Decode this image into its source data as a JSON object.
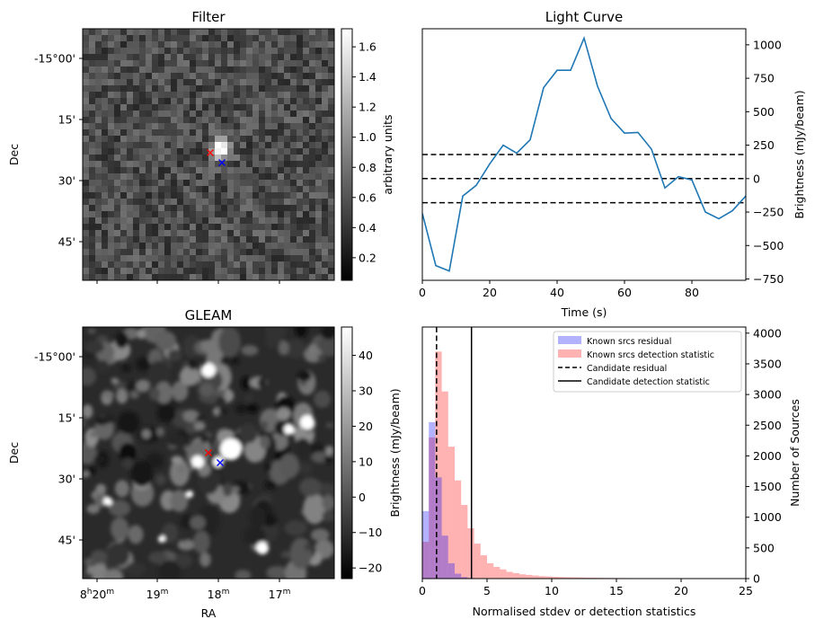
{
  "chart_data": [
    {
      "type": "heatmap",
      "title": "Filter",
      "ylabel": "Dec",
      "y_ticks": [
        "-15°00'",
        "15'",
        "30'",
        "45'"
      ],
      "colorbar": {
        "label": "arbitrary units",
        "range": [
          0.05,
          1.72
        ],
        "ticks": [
          "0.2",
          "0.4",
          "0.6",
          "0.8",
          "1.0",
          "1.2",
          "1.4",
          "1.6"
        ],
        "tick_values": [
          0.2,
          0.4,
          0.6,
          0.8,
          1.0,
          1.2,
          1.4,
          1.6
        ]
      },
      "markers": [
        {
          "symbol": "x",
          "color": "#ff0000",
          "label": "candidate"
        },
        {
          "symbol": "x",
          "color": "#0000ff",
          "label": "gleam source"
        }
      ]
    },
    {
      "type": "line",
      "title": "Light Curve",
      "xlabel": "Time (s)",
      "ylabel": "Brightness (mJy/beam)",
      "xlim": [
        0,
        96
      ],
      "ylim": [
        -760,
        1120
      ],
      "x_ticks": [
        0,
        20,
        40,
        60,
        80
      ],
      "y_ticks": [
        -750,
        -500,
        -250,
        0,
        250,
        500,
        750,
        1000
      ],
      "series": [
        {
          "color": "#1f77b4",
          "x": [
            0,
            4,
            8,
            12,
            16,
            20,
            24,
            28,
            32,
            36,
            40,
            44,
            48,
            52,
            56,
            60,
            64,
            68,
            72,
            76,
            80,
            84,
            88,
            92,
            96
          ],
          "y": [
            -260,
            -650,
            -690,
            -130,
            -50,
            110,
            250,
            190,
            290,
            680,
            810,
            810,
            1050,
            690,
            450,
            340,
            345,
            220,
            -70,
            15,
            -10,
            -250,
            -300,
            -240,
            -130
          ]
        }
      ],
      "hlines": [
        {
          "y": 180,
          "style": "dashed"
        },
        {
          "y": 0,
          "style": "dashed"
        },
        {
          "y": -180,
          "style": "dashed"
        }
      ]
    },
    {
      "type": "heatmap",
      "title": "GLEAM",
      "xlabel": "RA",
      "ylabel": "Dec",
      "x_ticks": [
        "8h20m",
        "19m",
        "18m",
        "17m"
      ],
      "y_ticks": [
        "-15°00'",
        "15'",
        "30'",
        "45'"
      ],
      "colorbar": {
        "label": "Brightness (mJy/beam)",
        "range": [
          -23,
          48
        ],
        "ticks": [
          "−20",
          "−10",
          "0",
          "10",
          "20",
          "30",
          "40"
        ],
        "tick_values": [
          -20,
          -10,
          0,
          10,
          20,
          30,
          40
        ]
      },
      "markers": [
        {
          "symbol": "x",
          "color": "#ff0000",
          "label": "candidate"
        },
        {
          "symbol": "x",
          "color": "#0000ff",
          "label": "gleam source"
        }
      ]
    },
    {
      "type": "bar",
      "xlabel": "Normalised stdev or detection statistics",
      "ylabel": "Number of Sources",
      "xlim": [
        0,
        25
      ],
      "ylim": [
        0,
        4100
      ],
      "x_ticks": [
        0,
        5,
        10,
        15,
        20,
        25
      ],
      "y_ticks": [
        0,
        500,
        1000,
        1500,
        2000,
        2500,
        3000,
        3500,
        4000
      ],
      "bin_width": 0.5,
      "bin_start": 0,
      "series": [
        {
          "name": "Known srcs residual",
          "color": "#0000ff",
          "opacity": 0.3,
          "values": [
            1100,
            2550,
            1650,
            700,
            250,
            80,
            25,
            10,
            5
          ]
        },
        {
          "name": "Known srcs detection statistic",
          "color": "#ff0000",
          "opacity": 0.3,
          "values": [
            600,
            2300,
            3700,
            3050,
            2150,
            1600,
            1200,
            820,
            570,
            380,
            250,
            190,
            150,
            110,
            90,
            70,
            60,
            50,
            40,
            35,
            30,
            25,
            22,
            20,
            18,
            15,
            14,
            12,
            11,
            10,
            9,
            8,
            7,
            7,
            6,
            6,
            5,
            5,
            4,
            4
          ]
        }
      ],
      "vlines": [
        {
          "name": "Candidate residual",
          "x": 1.1,
          "style": "dashed"
        },
        {
          "name": "Candidate detection statistic",
          "x": 3.8,
          "style": "solid"
        }
      ],
      "legend": "top-right"
    }
  ]
}
